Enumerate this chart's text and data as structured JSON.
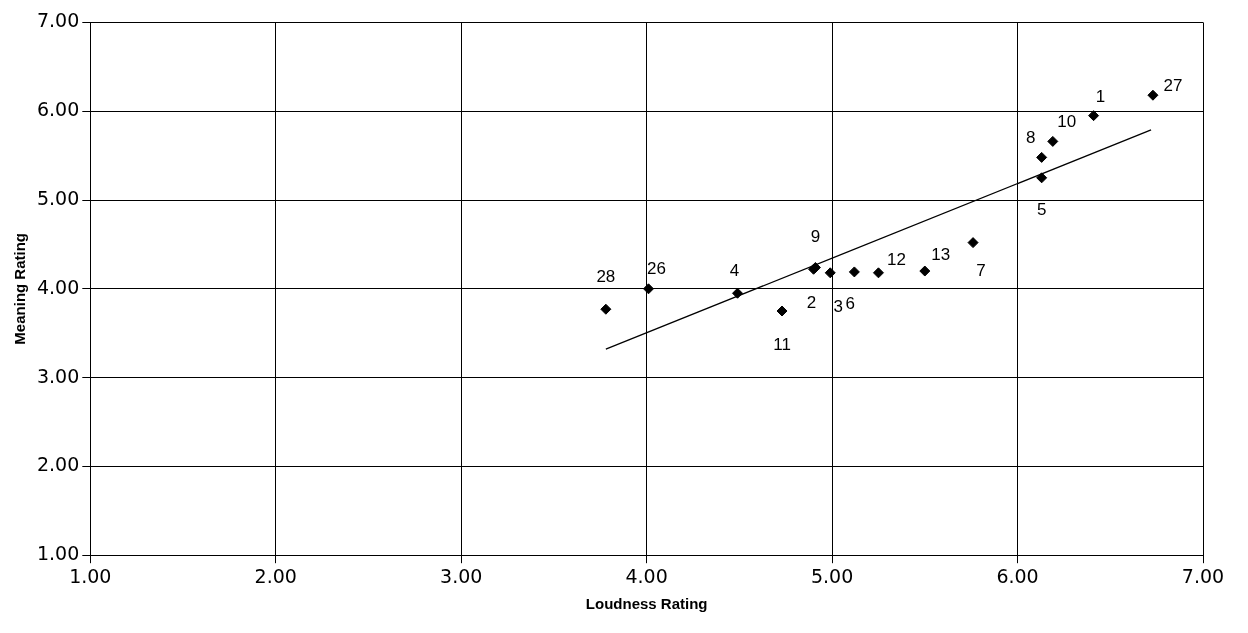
{
  "chart_data": {
    "type": "scatter",
    "xlabel": "Loudness Rating",
    "ylabel": "Meaning Rating",
    "xlim": [
      1,
      7
    ],
    "ylim": [
      1,
      7
    ],
    "xticks": [
      {
        "value": 1,
        "label": "1.00"
      },
      {
        "value": 2,
        "label": "2.00"
      },
      {
        "value": 3,
        "label": "3.00"
      },
      {
        "value": 4,
        "label": "4.00"
      },
      {
        "value": 5,
        "label": "5.00"
      },
      {
        "value": 6,
        "label": "6.00"
      },
      {
        "value": 7,
        "label": "7.00"
      }
    ],
    "yticks": [
      {
        "value": 1,
        "label": "1.00"
      },
      {
        "value": 2,
        "label": "2.00"
      },
      {
        "value": 3,
        "label": "3.00"
      },
      {
        "value": 4,
        "label": "4.00"
      },
      {
        "value": 5,
        "label": "5.00"
      },
      {
        "value": 6,
        "label": "6.00"
      },
      {
        "value": 7,
        "label": "7.00"
      }
    ],
    "grid": true,
    "legend": false,
    "series": [
      {
        "color": "#000000",
        "marker": "diamond",
        "x": [
          3.78,
          4.01,
          4.49,
          4.73,
          4.9,
          4.91,
          4.99,
          5.12,
          5.25,
          5.5,
          5.76,
          6.13,
          6.13,
          6.19,
          6.41,
          6.73
        ],
        "values": [
          3.77,
          4.0,
          3.95,
          3.75,
          4.22,
          4.24,
          4.18,
          4.19,
          4.18,
          4.2,
          4.52,
          5.25,
          5.48,
          5.66,
          5.95,
          6.18
        ]
      },
      {
        "type": "line",
        "marker": "none",
        "color": "#000000",
        "x": [
          3.78,
          6.72
        ],
        "values": [
          3.32,
          5.79
        ]
      }
    ],
    "annotations": [
      {
        "text": "28",
        "x": 3.78,
        "y": 3.77
      },
      {
        "text": "26",
        "x": 4.01,
        "y": 4.0
      },
      {
        "text": "4",
        "x": 4.49,
        "y": 3.95
      },
      {
        "text": "11",
        "x": 4.73,
        "y": 3.75
      },
      {
        "text": "9",
        "x": 4.9,
        "y": 4.22
      },
      {
        "text": "2",
        "x": 4.91,
        "y": 4.24
      },
      {
        "text": "3",
        "x": 4.99,
        "y": 4.18
      },
      {
        "text": "6",
        "x": 5.12,
        "y": 4.19
      },
      {
        "text": "12",
        "x": 5.25,
        "y": 4.18
      },
      {
        "text": "13",
        "x": 5.5,
        "y": 4.2
      },
      {
        "text": "7",
        "x": 5.76,
        "y": 4.52
      },
      {
        "text": "5",
        "x": 6.13,
        "y": 5.25
      },
      {
        "text": "8",
        "x": 6.13,
        "y": 5.48
      },
      {
        "text": "10",
        "x": 6.19,
        "y": 5.66
      },
      {
        "text": "1",
        "x": 6.41,
        "y": 5.95
      },
      {
        "text": "27",
        "x": 6.73,
        "y": 6.18
      }
    ]
  }
}
